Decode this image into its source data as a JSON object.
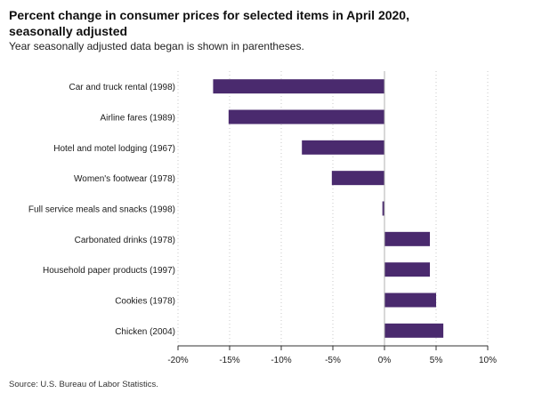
{
  "chart_data": {
    "type": "bar",
    "orientation": "horizontal",
    "title": "Percent change in consumer prices for selected items in April 2020, seasonally adjusted",
    "subtitle": "Year seasonally adjusted data began is shown in parentheses.",
    "source": "Source: U.S. Bureau of Labor Statistics.",
    "categories": [
      "Car and truck rental (1998)",
      "Airline fares (1989)",
      "Hotel and motel lodging (1967)",
      "Women's footwear (1978)",
      "Full service meals and snacks (1998)",
      "Carbonated drinks (1978)",
      "Household paper products (1997)",
      "Cookies (1978)",
      "Chicken (2004)"
    ],
    "values": [
      -16.6,
      -15.1,
      -8.0,
      -5.1,
      -0.2,
      4.4,
      4.4,
      5.0,
      5.7
    ],
    "xlim": [
      -20,
      10
    ],
    "ticks": [
      -20,
      -15,
      -10,
      -5,
      0,
      5,
      10
    ],
    "tick_labels": [
      "-20%",
      "-15%",
      "-10%",
      "-5%",
      "0%",
      "5%",
      "10%"
    ],
    "bar_color": "#4a2a6e",
    "grid": "vertical dotted",
    "xlabel": "",
    "ylabel": ""
  }
}
